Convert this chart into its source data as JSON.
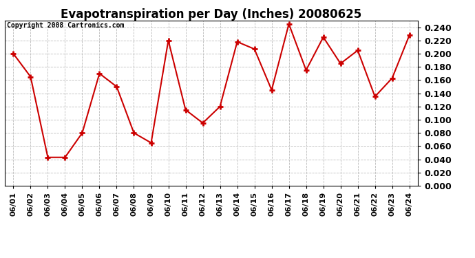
{
  "title": "Evapotranspiration per Day (Inches) 20080625",
  "copyright": "Copyright 2008 Cartronics.com",
  "dates": [
    "06/01",
    "06/02",
    "06/03",
    "06/04",
    "06/05",
    "06/06",
    "06/07",
    "06/08",
    "06/09",
    "06/10",
    "06/11",
    "06/12",
    "06/13",
    "06/14",
    "06/15",
    "06/16",
    "06/17",
    "06/18",
    "06/19",
    "06/20",
    "06/21",
    "06/22",
    "06/23",
    "06/24"
  ],
  "values": [
    0.2,
    0.165,
    0.043,
    0.043,
    0.08,
    0.17,
    0.15,
    0.08,
    0.065,
    0.22,
    0.115,
    0.095,
    0.12,
    0.218,
    0.207,
    0.145,
    0.245,
    0.175,
    0.225,
    0.185,
    0.205,
    0.135,
    0.163,
    0.228
  ],
  "line_color": "#cc0000",
  "marker": "+",
  "marker_size": 6,
  "marker_color": "#cc0000",
  "ylim": [
    0.0,
    0.25
  ],
  "ytick_step": 0.02,
  "ytick_max": 0.24,
  "background_color": "#ffffff",
  "grid_color": "#bbbbbb",
  "title_fontsize": 12,
  "copyright_fontsize": 7,
  "tick_fontsize": 8,
  "ytick_fontsize": 9,
  "line_width": 1.5
}
